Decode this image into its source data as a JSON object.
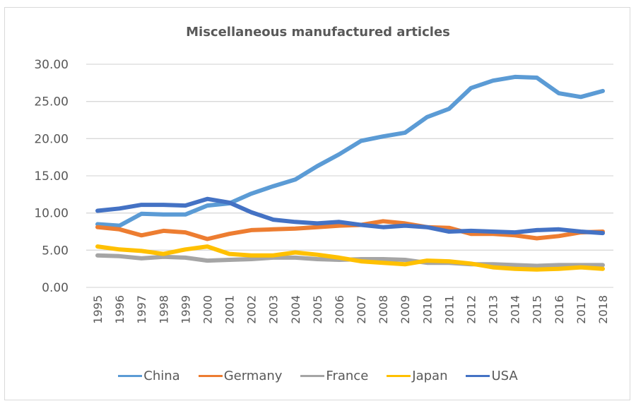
{
  "chart_data": {
    "type": "line",
    "title": "Miscellaneous manufactured articles",
    "xlabel": "",
    "ylabel": "",
    "ylim": [
      0,
      30
    ],
    "yticks": [
      "0.00",
      "5.00",
      "10.00",
      "15.00",
      "20.00",
      "25.00",
      "30.00"
    ],
    "ytick_values": [
      0,
      5,
      10,
      15,
      20,
      25,
      30
    ],
    "grid": true,
    "legend_position": "bottom",
    "x": [
      "1995",
      "1996",
      "1997",
      "1998",
      "1999",
      "2000",
      "2001",
      "2002",
      "2003",
      "2004",
      "2005",
      "2006",
      "2007",
      "2008",
      "2009",
      "2010",
      "2011",
      "2012",
      "2013",
      "2014",
      "2015",
      "2016",
      "2017",
      "2018"
    ],
    "series": [
      {
        "name": "China",
        "color": "#5b9bd5",
        "values": [
          8.5,
          8.3,
          9.9,
          9.8,
          9.8,
          11.0,
          11.3,
          12.6,
          13.6,
          14.5,
          16.3,
          17.9,
          19.7,
          20.3,
          20.8,
          22.9,
          24.0,
          26.8,
          27.8,
          28.3,
          28.2,
          26.1,
          25.6,
          26.4
        ]
      },
      {
        "name": "Germany",
        "color": "#ed7d31",
        "values": [
          8.1,
          7.8,
          7.0,
          7.6,
          7.4,
          6.5,
          7.2,
          7.7,
          7.8,
          7.9,
          8.1,
          8.3,
          8.4,
          8.9,
          8.6,
          8.1,
          8.0,
          7.2,
          7.2,
          7.0,
          6.6,
          6.9,
          7.4,
          7.5
        ]
      },
      {
        "name": "France",
        "color": "#a5a5a5",
        "values": [
          4.3,
          4.2,
          3.9,
          4.1,
          4.0,
          3.6,
          3.7,
          3.8,
          4.0,
          4.0,
          3.8,
          3.7,
          3.8,
          3.8,
          3.7,
          3.3,
          3.3,
          3.1,
          3.1,
          3.0,
          2.9,
          3.0,
          3.0,
          3.0
        ]
      },
      {
        "name": "Japan",
        "color": "#ffc000",
        "values": [
          5.5,
          5.1,
          4.9,
          4.5,
          5.1,
          5.5,
          4.5,
          4.3,
          4.3,
          4.7,
          4.4,
          4.0,
          3.5,
          3.3,
          3.1,
          3.6,
          3.5,
          3.2,
          2.7,
          2.5,
          2.4,
          2.5,
          2.7,
          2.5
        ]
      },
      {
        "name": "USA",
        "color": "#4472c4",
        "values": [
          10.3,
          10.6,
          11.1,
          11.1,
          11.0,
          11.9,
          11.4,
          10.1,
          9.1,
          8.8,
          8.6,
          8.8,
          8.4,
          8.1,
          8.3,
          8.1,
          7.5,
          7.6,
          7.5,
          7.4,
          7.7,
          7.8,
          7.5,
          7.3
        ]
      }
    ]
  }
}
